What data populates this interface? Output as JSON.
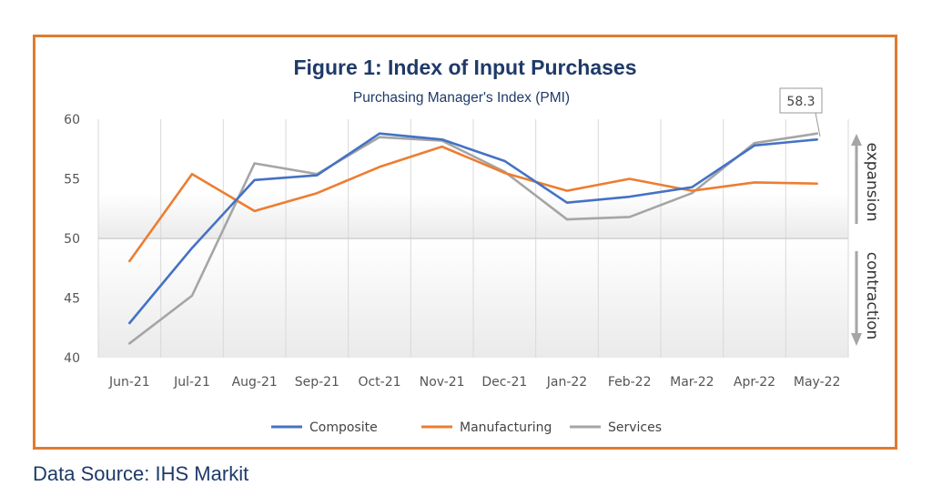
{
  "colors": {
    "frame": "#e07b2e",
    "title": "#1f3a68",
    "composite": "#4472c4",
    "manufacturing": "#ed7d31",
    "services": "#a5a5a5",
    "arrow": "#a6a6a6"
  },
  "chart_data": {
    "type": "line",
    "title": "Figure 1: Index of Input Purchases",
    "subtitle": "Purchasing Manager's Index (PMI)",
    "categories": [
      "Jun-21",
      "Jul-21",
      "Aug-21",
      "Sep-21",
      "Oct-21",
      "Nov-21",
      "Dec-21",
      "Jan-22",
      "Feb-22",
      "Mar-22",
      "Apr-22",
      "May-22"
    ],
    "series": [
      {
        "name": "Composite",
        "color": "#4472c4",
        "values": [
          42.9,
          49.2,
          54.9,
          55.3,
          58.8,
          58.3,
          56.5,
          53.0,
          53.5,
          54.3,
          57.8,
          58.3
        ]
      },
      {
        "name": "Manufacturing",
        "color": "#ed7d31",
        "values": [
          48.1,
          55.4,
          52.3,
          53.8,
          56.0,
          57.7,
          55.5,
          54.0,
          55.0,
          54.0,
          54.7,
          54.6
        ]
      },
      {
        "name": "Services",
        "color": "#a5a5a5",
        "values": [
          41.2,
          45.2,
          56.3,
          55.4,
          58.5,
          58.2,
          55.6,
          51.6,
          51.8,
          53.8,
          58.0,
          58.8
        ]
      }
    ],
    "y_ticks": [
      "40",
      "45",
      "50",
      "55",
      "60"
    ],
    "ylim": [
      40,
      60
    ],
    "threshold": 50,
    "callout": "58.3",
    "side_labels": {
      "expansion": "expansion",
      "contraction": "contraction"
    },
    "legend_position": "bottom",
    "grid": "vertical"
  },
  "source": "Data Source: IHS Markit"
}
